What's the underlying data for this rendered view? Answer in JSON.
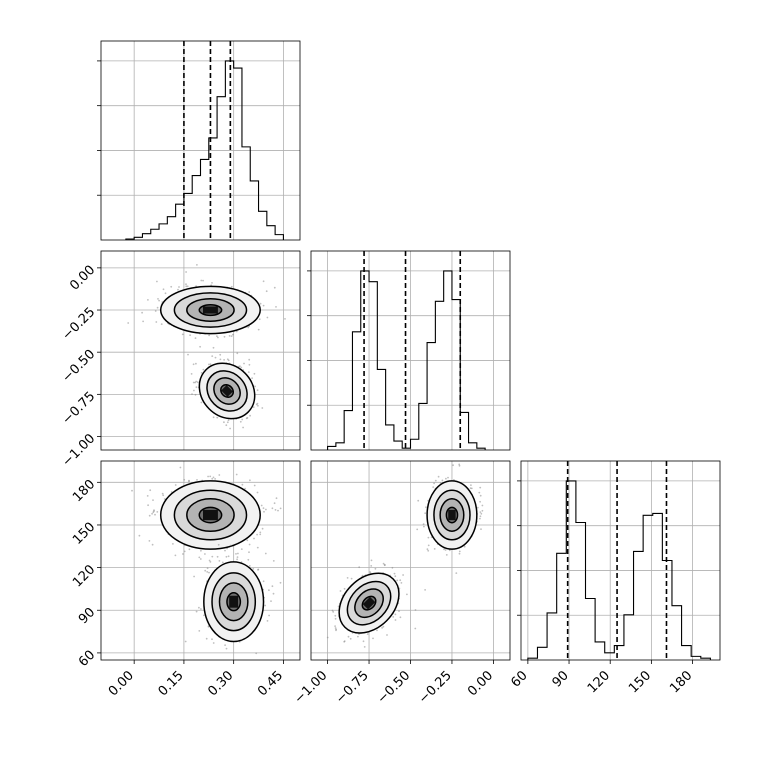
{
  "chart_data": [
    {
      "type": "histogram",
      "panel": "row1-col1",
      "xlim": [
        -0.1,
        0.5
      ],
      "bin_edges": [
        -0.025,
        0.0,
        0.025,
        0.05,
        0.075,
        0.1,
        0.125,
        0.15,
        0.175,
        0.2,
        0.225,
        0.25,
        0.275,
        0.3,
        0.325,
        0.35,
        0.375,
        0.4,
        0.425,
        0.45
      ],
      "counts": [
        0.5,
        1.5,
        3.5,
        6,
        9,
        13,
        20,
        26,
        36,
        45,
        57,
        80,
        100,
        96,
        52,
        33,
        16,
        8,
        3
      ],
      "quantiles": [
        0.15,
        0.23,
        0.29
      ],
      "grid": true
    },
    {
      "type": "scatter",
      "panel": "row2-col1",
      "xlim": [
        -0.1,
        0.5
      ],
      "ylim": [
        -1.08,
        0.1
      ],
      "yticks": [
        "0.00",
        "−0.25",
        "−0.50",
        "−0.75",
        "−1.00"
      ],
      "clusters": [
        {
          "center": [
            0.23,
            -0.25
          ],
          "spread": [
            0.075,
            0.07
          ],
          "rotate_deg": 0
        },
        {
          "center": [
            0.28,
            -0.73
          ],
          "spread": [
            0.045,
            0.075
          ],
          "rotate_deg": 45
        }
      ],
      "grid": true
    },
    {
      "type": "histogram",
      "panel": "row2-col2",
      "xlim": [
        -1.1,
        0.1
      ],
      "bin_edges": [
        -1.0,
        -0.95,
        -0.9,
        -0.85,
        -0.8,
        -0.75,
        -0.7,
        -0.65,
        -0.6,
        -0.55,
        -0.5,
        -0.45,
        -0.4,
        -0.35,
        -0.3,
        -0.25,
        -0.2,
        -0.15,
        -0.1,
        -0.05
      ],
      "counts": [
        2,
        4,
        22,
        66,
        100,
        94,
        45,
        14,
        5,
        1,
        6,
        26,
        60,
        83,
        100,
        84,
        21,
        4,
        1
      ],
      "quantiles": [
        -0.78,
        -0.53,
        -0.2
      ],
      "grid": true
    },
    {
      "type": "scatter",
      "panel": "row3-col1",
      "xlim": [
        -0.1,
        0.5
      ],
      "ylim": [
        55,
        195
      ],
      "yticks": [
        "180",
        "150",
        "120",
        "90",
        "60"
      ],
      "clusters": [
        {
          "center": [
            0.23,
            157
          ],
          "spread": [
            0.075,
            12
          ],
          "rotate_deg": 0
        },
        {
          "center": [
            0.3,
            96
          ],
          "spread": [
            0.045,
            14
          ],
          "rotate_deg": 0
        }
      ],
      "grid": true
    },
    {
      "type": "scatter",
      "panel": "row3-col2",
      "xlim": [
        -1.1,
        0.1
      ],
      "ylim": [
        55,
        195
      ],
      "xticks": [
        "−1.00",
        "−0.75",
        "−0.50",
        "−0.25",
        "0.00"
      ],
      "clusters": [
        {
          "center": [
            -0.25,
            157
          ],
          "spread": [
            0.075,
            12
          ],
          "rotate_deg": 0
        },
        {
          "center": [
            -0.75,
            95
          ],
          "spread": [
            0.075,
            12
          ],
          "rotate_deg": 45
        }
      ],
      "grid": true
    },
    {
      "type": "histogram",
      "panel": "row3-col3",
      "xlim": [
        55,
        200
      ],
      "xticks": [
        "60",
        "90",
        "120",
        "150",
        "180"
      ],
      "bin_edges": [
        60,
        67,
        74,
        81,
        88,
        95,
        102,
        109,
        116,
        123,
        130,
        137,
        144,
        151,
        158,
        165,
        172,
        179,
        186,
        193
      ],
      "counts": [
        1,
        7,
        26,
        59,
        99,
        76,
        34,
        10,
        4,
        8,
        25,
        60,
        80,
        81,
        55,
        30,
        8,
        2,
        1
      ],
      "quantiles": [
        89,
        125,
        161
      ],
      "grid": true
    }
  ],
  "axis_labels": {
    "x_col1": [
      "0.00",
      "0.15",
      "0.30",
      "0.45"
    ],
    "x_col2": [
      "−1.00",
      "−0.75",
      "−0.50",
      "−0.25",
      "0.00"
    ],
    "x_col3": [
      "60",
      "90",
      "120",
      "150",
      "180"
    ],
    "y_row2": [
      "0.00",
      "−0.25",
      "−0.50",
      "−0.75",
      "−1.00"
    ],
    "y_row3": [
      "180",
      "150",
      "120",
      "90",
      "60"
    ]
  }
}
